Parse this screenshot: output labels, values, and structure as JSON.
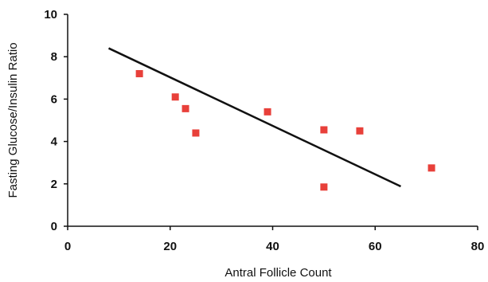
{
  "chart_data": {
    "type": "scatter",
    "title": "",
    "xlabel": "Antral Follicle Count",
    "ylabel": "Fasting Glucose/Insulin Ratio",
    "xlim": [
      0,
      80
    ],
    "ylim": [
      0,
      10
    ],
    "xticks": [
      0,
      20,
      40,
      60,
      80
    ],
    "yticks": [
      0,
      2,
      4,
      6,
      8,
      10
    ],
    "grid": false,
    "legend": "none",
    "series": [
      {
        "marker": "square",
        "color": "#e8403a",
        "points": [
          {
            "x": 14,
            "y": 7.2
          },
          {
            "x": 21,
            "y": 6.1
          },
          {
            "x": 23,
            "y": 5.55
          },
          {
            "x": 25,
            "y": 4.4
          },
          {
            "x": 39,
            "y": 5.4
          },
          {
            "x": 50,
            "y": 4.55
          },
          {
            "x": 50,
            "y": 1.85
          },
          {
            "x": 57,
            "y": 4.5
          },
          {
            "x": 71,
            "y": 2.75
          }
        ]
      }
    ],
    "trendline": {
      "color": "#111111",
      "x": [
        8,
        65
      ],
      "y": [
        8.4,
        1.88
      ]
    }
  }
}
